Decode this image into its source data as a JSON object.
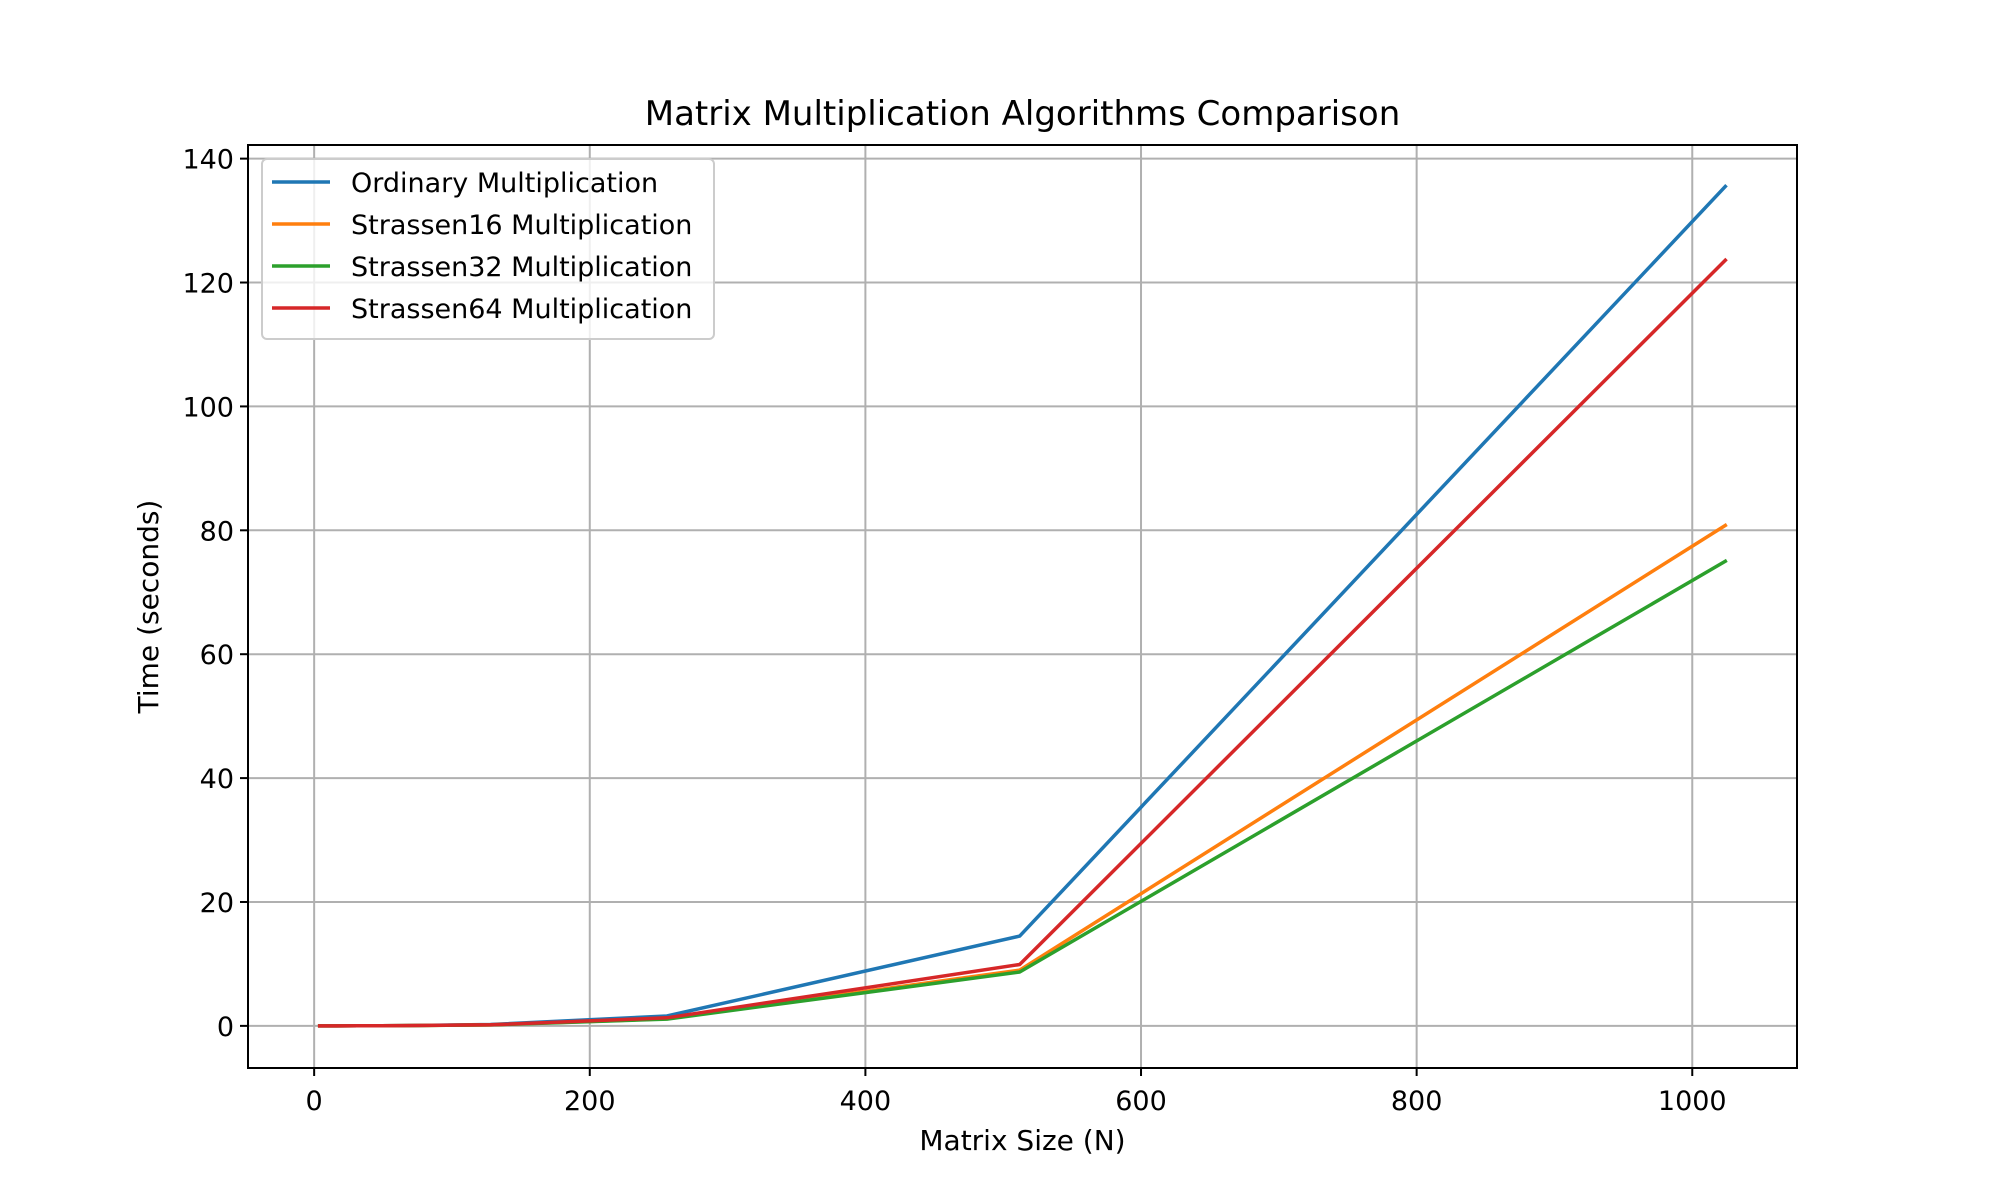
{
  "chart_data": {
    "type": "line",
    "title": "Matrix Multiplication Algorithms Comparison",
    "xlabel": "Matrix Size (N)",
    "ylabel": "Time (seconds)",
    "xlim": [
      -48,
      1076
    ],
    "ylim": [
      -6.8,
      142.2
    ],
    "x_ticks": [
      0,
      200,
      400,
      600,
      800,
      1000
    ],
    "y_ticks": [
      0,
      20,
      40,
      60,
      80,
      100,
      120,
      140
    ],
    "grid": true,
    "legend_position": "upper left",
    "x": [
      4,
      8,
      16,
      32,
      64,
      128,
      256,
      512,
      1024
    ],
    "series": [
      {
        "name": "Ordinary Multiplication",
        "color": "#1f77b4",
        "values": [
          0,
          0,
          0,
          0.01,
          0.05,
          0.22,
          1.6,
          14.5,
          135.5
        ]
      },
      {
        "name": "Strassen16 Multiplication",
        "color": "#ff7f0e",
        "values": [
          0,
          0,
          0,
          0.01,
          0.04,
          0.16,
          1.15,
          9.0,
          80.8
        ]
      },
      {
        "name": "Strassen32 Multiplication",
        "color": "#2ca02c",
        "values": [
          0,
          0,
          0,
          0.01,
          0.04,
          0.15,
          1.1,
          8.7,
          75.0
        ]
      },
      {
        "name": "Strassen64 Multiplication",
        "color": "#d62728",
        "values": [
          0,
          0,
          0,
          0.01,
          0.04,
          0.17,
          1.3,
          9.9,
          123.6
        ]
      }
    ]
  }
}
